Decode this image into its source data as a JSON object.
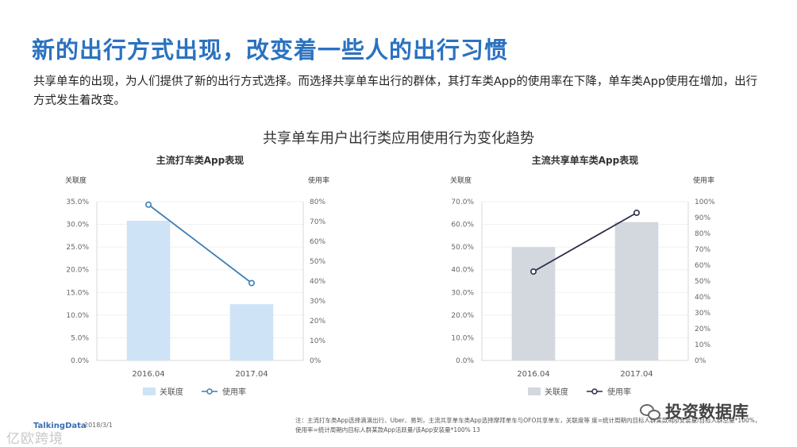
{
  "page": {
    "title": "新的出行方式出现，改变着一些人的出行习惯",
    "description": "共享单车的出现，为人们提供了新的出行方式选择。而选择共享单车出行的群体，其打车类App的使用率在下降，单车类App使用在增加，出行方式发生着改变。",
    "main_chart_title": "共享单车用户出行类应用使用行为变化趋势",
    "footer_logo": "TalkingData",
    "footer_date": "2018/3/1",
    "footer_note": "注：主流打车类App选择滴滴出行、Uber、易到，主流共享单车类App选择摩拜单车与OFO共享单车，关联度等 度=统计周期内目标人群某款app安装量/目标人群总量*100%，使用率=统计周期内目标人群某款App活跃量/该App安装量*100%",
    "page_number": "13",
    "watermark_left": "亿欧跨境",
    "watermark_right": "投资数据库"
  },
  "chart_data": [
    {
      "type": "bar",
      "title": "主流打车类App表现",
      "categories": [
        "2016.04",
        "2017.04"
      ],
      "left_axis_title": "关联度",
      "right_axis_title": "使用率",
      "left_ticks": [
        "35.0%",
        "30.0%",
        "25.0%",
        "20.0%",
        "15.0%",
        "10.0%",
        "5.0%",
        "0.0%"
      ],
      "right_ticks": [
        "80%",
        "70%",
        "60%",
        "50%",
        "40%",
        "30%",
        "20%",
        "10%",
        "0%"
      ],
      "ylim_left": [
        0,
        35
      ],
      "ylim_right": [
        0,
        80
      ],
      "series": [
        {
          "name": "关联度",
          "type": "bar",
          "axis": "left",
          "values": [
            30.8,
            12.4
          ],
          "color": "#cfe3f7"
        },
        {
          "name": "使用率",
          "type": "line",
          "axis": "right",
          "values": [
            78.5,
            39
          ],
          "color": "#3d7fb5"
        }
      ]
    },
    {
      "type": "bar",
      "title": "主流共享单车类App表现",
      "categories": [
        "2016.04",
        "2017.04"
      ],
      "left_axis_title": "关联度",
      "right_axis_title": "使用率",
      "left_ticks": [
        "70.0%",
        "60.0%",
        "50.0%",
        "40.0%",
        "30.0%",
        "20.0%",
        "10.0%",
        "0.0%"
      ],
      "right_ticks": [
        "100%",
        "90%",
        "80%",
        "70%",
        "60%",
        "50%",
        "40%",
        "30%",
        "20%",
        "10%",
        "0%"
      ],
      "ylim_left": [
        0,
        70
      ],
      "ylim_right": [
        0,
        100
      ],
      "series": [
        {
          "name": "关联度",
          "type": "bar",
          "axis": "left",
          "values": [
            50,
            61
          ],
          "color": "#d3d8df"
        },
        {
          "name": "使用率",
          "type": "line",
          "axis": "right",
          "values": [
            56,
            93
          ],
          "color": "#2b2f4a"
        }
      ]
    }
  ]
}
